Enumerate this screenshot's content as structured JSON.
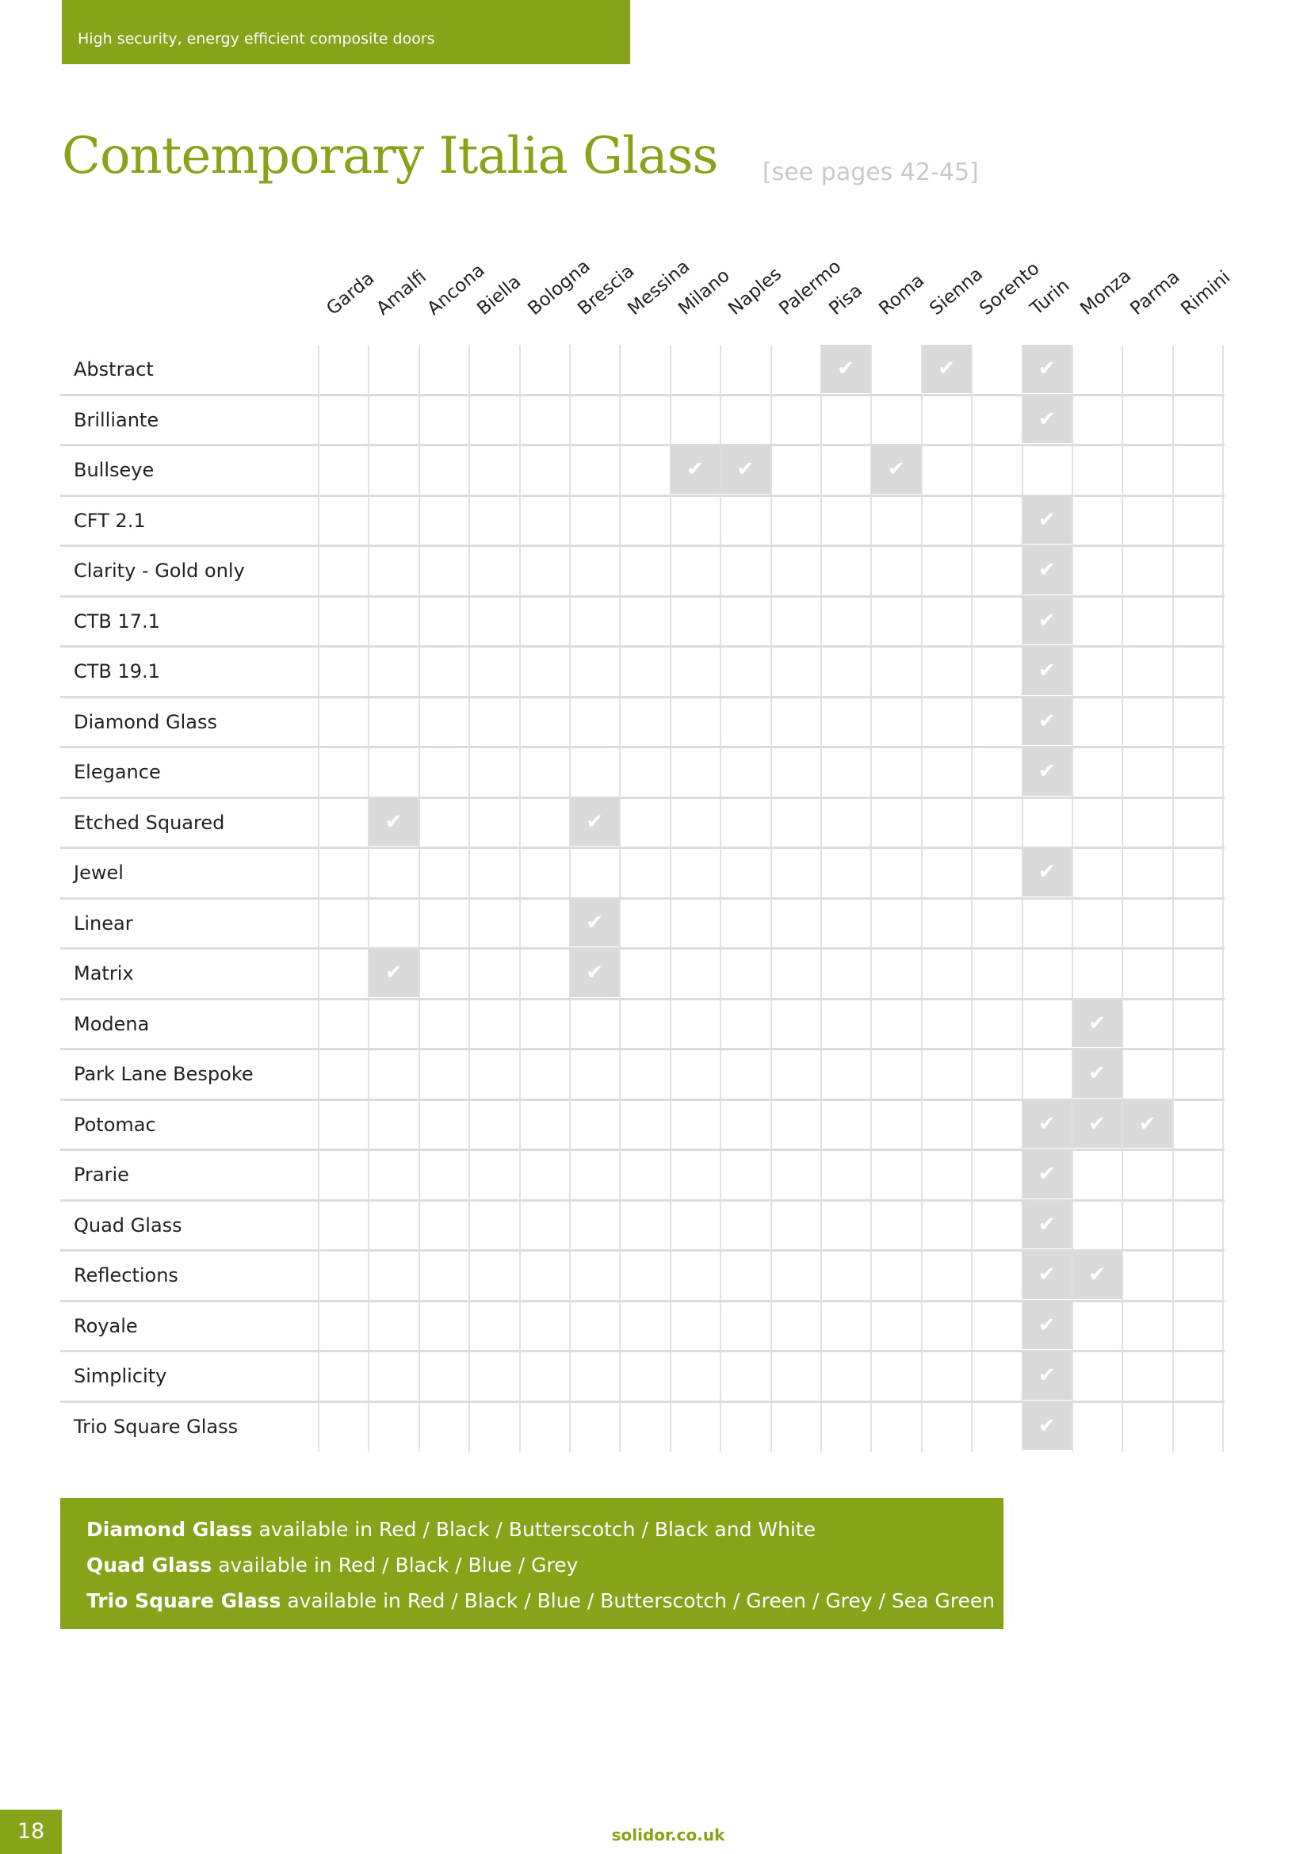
{
  "header": {
    "tagline": "High security, energy efficient composite doors"
  },
  "title": "Contemporary Italia Glass",
  "page_ref": "[see pages 42-45]",
  "check_symbol": "✔",
  "colors": {
    "brand_green": "#86a31a",
    "check_cell": "#d9d9d9"
  },
  "table": {
    "columns": [
      "Garda",
      "Amalfi",
      "Ancona",
      "Biella",
      "Bologna",
      "Brescia",
      "Messina",
      "Milano",
      "Naples",
      "Palermo",
      "Pisa",
      "Roma",
      "Sienna",
      "Sorento",
      "Turin",
      "Monza",
      "Parma",
      "Rimini"
    ],
    "rows": [
      {
        "label": "Abstract",
        "available": [
          "Pisa",
          "Sienna",
          "Turin"
        ]
      },
      {
        "label": "Brilliante",
        "available": [
          "Turin"
        ]
      },
      {
        "label": "Bullseye",
        "available": [
          "Milano",
          "Naples",
          "Roma"
        ]
      },
      {
        "label": "CFT 2.1",
        "available": [
          "Turin"
        ]
      },
      {
        "label": "Clarity - Gold only",
        "available": [
          "Turin"
        ]
      },
      {
        "label": "CTB 17.1",
        "available": [
          "Turin"
        ]
      },
      {
        "label": "CTB 19.1",
        "available": [
          "Turin"
        ]
      },
      {
        "label": "Diamond Glass",
        "available": [
          "Turin"
        ]
      },
      {
        "label": "Elegance",
        "available": [
          "Turin"
        ]
      },
      {
        "label": "Etched Squared",
        "available": [
          "Amalfi",
          "Brescia"
        ]
      },
      {
        "label": "Jewel",
        "available": [
          "Turin"
        ]
      },
      {
        "label": "Linear",
        "available": [
          "Brescia"
        ]
      },
      {
        "label": "Matrix",
        "available": [
          "Amalfi",
          "Brescia"
        ]
      },
      {
        "label": "Modena",
        "available": [
          "Monza"
        ]
      },
      {
        "label": "Park Lane Bespoke",
        "available": [
          "Monza"
        ]
      },
      {
        "label": "Potomac",
        "available": [
          "Turin",
          "Monza",
          "Parma"
        ]
      },
      {
        "label": "Prarie",
        "available": [
          "Turin"
        ]
      },
      {
        "label": "Quad Glass",
        "available": [
          "Turin"
        ]
      },
      {
        "label": "Reflections",
        "available": [
          "Turin",
          "Monza"
        ]
      },
      {
        "label": "Royale",
        "available": [
          "Turin"
        ]
      },
      {
        "label": "Simplicity",
        "available": [
          "Turin"
        ]
      },
      {
        "label": "Trio Square Glass",
        "available": [
          "Turin"
        ]
      }
    ]
  },
  "notes": [
    {
      "name": "Diamond Glass",
      "text": " available in Red / Black / Butterscotch / Black and White"
    },
    {
      "name": "Quad Glass",
      "text": " available in Red / Black / Blue / Grey"
    },
    {
      "name": "Trio Square Glass",
      "text": " available in Red / Black / Blue / Butterscotch / Green / Grey / Sea Green"
    }
  ],
  "footer": {
    "page_number": "18",
    "website": "solidor.co.uk"
  }
}
